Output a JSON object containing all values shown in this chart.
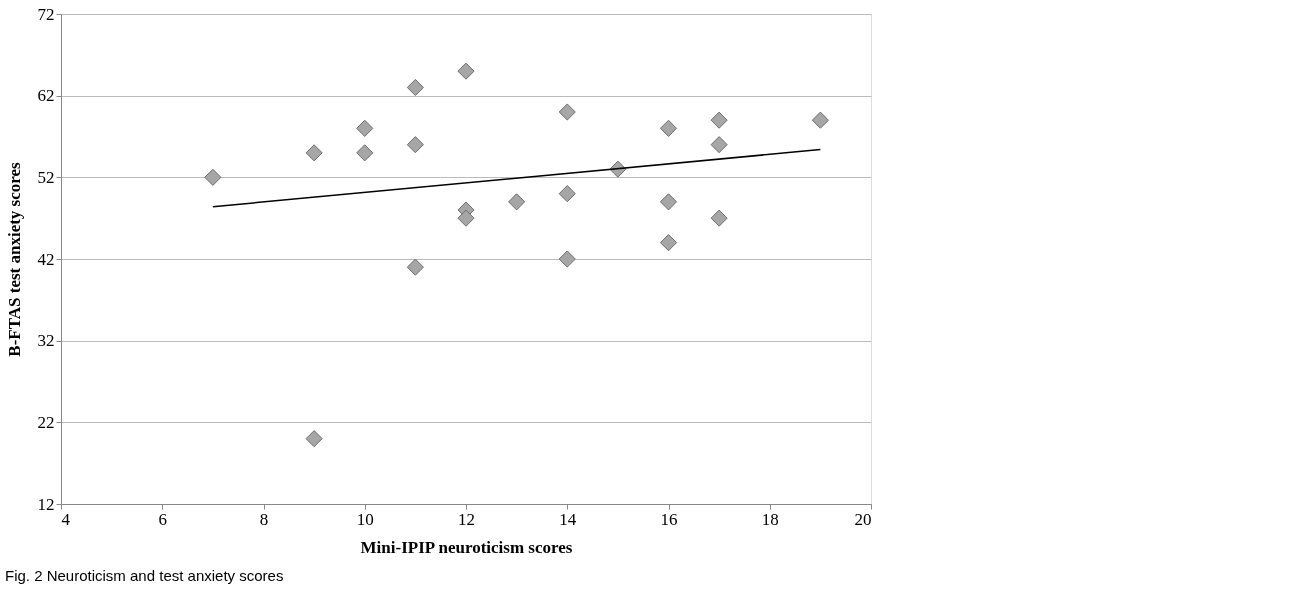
{
  "chart_data": {
    "type": "scatter",
    "xlabel": "Mini-IPIP neuroticism scores",
    "ylabel": "B-FTAS test  anxiety scores",
    "x": [
      7,
      9,
      9,
      10,
      10,
      11,
      11,
      11,
      12,
      12,
      12,
      13,
      14,
      14,
      14,
      15,
      16,
      16,
      16,
      17,
      17,
      17,
      19
    ],
    "series": [
      {
        "color": "#a6a6a6",
        "values": [
          52,
          55,
          20,
          58,
          55,
          63,
          56,
          41,
          65,
          48,
          47,
          49,
          60,
          50,
          42,
          53,
          58,
          49,
          44,
          59,
          56,
          47,
          59
        ]
      },
      {
        "type": "line",
        "marker": "none",
        "color": "#000000",
        "x": [
          7,
          19
        ],
        "values": [
          48.4,
          55.4
        ]
      }
    ],
    "xlim": [
      4,
      20
    ],
    "xticks": [
      4,
      6,
      8,
      10,
      12,
      14,
      16,
      18,
      20
    ],
    "ylim": [
      12,
      72
    ],
    "yticks": [
      12,
      22,
      32,
      42,
      52,
      62,
      72
    ],
    "grid": "y",
    "marker": "diamond",
    "annotations": [
      "Fig. 2 Neuroticism and test anxiety scores"
    ]
  }
}
